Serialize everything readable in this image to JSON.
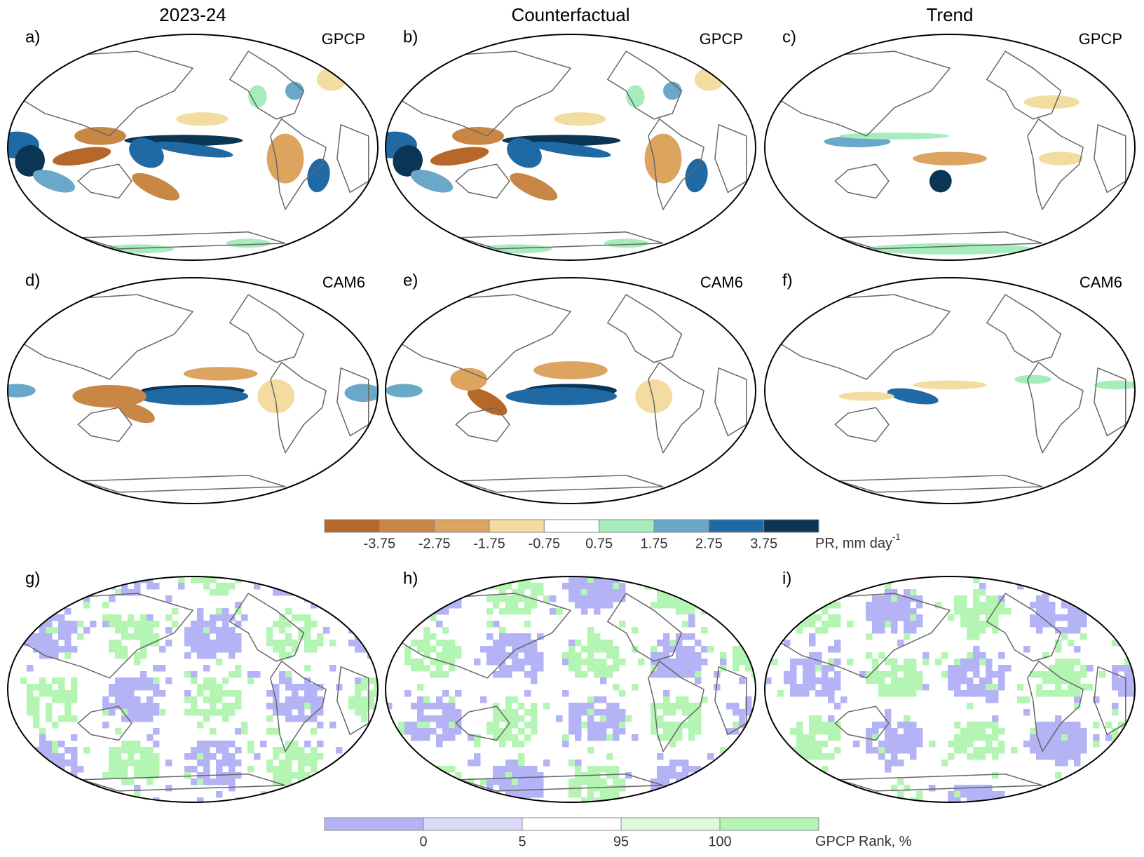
{
  "columns": [
    "2023-24",
    "Counterfactual",
    "Trend"
  ],
  "panels": [
    {
      "label": "a)",
      "dataset": "GPCP"
    },
    {
      "label": "b)",
      "dataset": "GPCP"
    },
    {
      "label": "c)",
      "dataset": "GPCP"
    },
    {
      "label": "d)",
      "dataset": "CAM6"
    },
    {
      "label": "e)",
      "dataset": "CAM6"
    },
    {
      "label": "f)",
      "dataset": "CAM6"
    },
    {
      "label": "g)"
    },
    {
      "label": "h)"
    },
    {
      "label": "i)"
    }
  ],
  "colorbar_pr": {
    "ticks": [
      -3.75,
      -2.75,
      -1.75,
      -0.75,
      0.75,
      1.75,
      2.75,
      3.75
    ],
    "label": "PR, mm day",
    "label_superscript": "-1",
    "colors": [
      "#b5682a",
      "#c98745",
      "#dda460",
      "#f2dc9f",
      "#ffffff",
      "#a6ecbd",
      "#6aa8c9",
      "#1f6aa5",
      "#0a3554"
    ]
  },
  "colorbar_rank": {
    "ticks": [
      0,
      5,
      95,
      100
    ],
    "label": "GPCP Rank, %",
    "colors": [
      "#b3b3f5",
      "#dcdcfa",
      "#ffffff",
      "#ddfadd",
      "#b4f5b4"
    ]
  }
}
